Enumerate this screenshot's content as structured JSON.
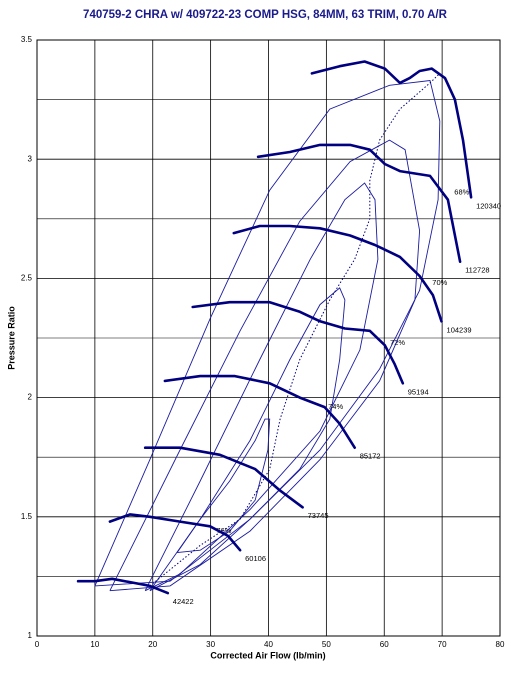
{
  "chart_data": {
    "type": "line",
    "title": "740759-2 CHRA w/ 409722-23 COMP HSG, 84MM, 63 TRIM, 0.70 A/R",
    "x_label": "Corrected Air Flow (lb/min)",
    "y_label": "Pressure Ratio",
    "xlim": [
      0,
      80
    ],
    "ylim": [
      1,
      3.5
    ],
    "xticks": [
      0,
      10,
      20,
      30,
      40,
      50,
      60,
      70,
      80
    ],
    "yticks": [
      1,
      1.5,
      2,
      2.5,
      3,
      3.5
    ],
    "y_minor_grid": [
      1.25,
      1.75,
      2.25,
      2.75,
      3.25
    ],
    "grid": true,
    "series": [
      {
        "name": "42422",
        "color": "#000080",
        "x": [
          7.1,
          10.0,
          13.0,
          19.5,
          22.6
        ],
        "y": [
          1.23,
          1.23,
          1.24,
          1.21,
          1.18
        ]
      },
      {
        "name": "60106",
        "color": "#000080",
        "x": [
          12.6,
          16.1,
          19.5,
          24.7,
          29.9,
          33.0,
          35.1
        ],
        "y": [
          1.48,
          1.51,
          1.5,
          1.48,
          1.46,
          1.42,
          1.36
        ]
      },
      {
        "name": "73745",
        "color": "#000080",
        "x": [
          18.7,
          24.7,
          31.6,
          37.7,
          42.0,
          45.9
        ],
        "y": [
          1.79,
          1.79,
          1.76,
          1.7,
          1.61,
          1.54
        ]
      },
      {
        "name": "85172",
        "color": "#000080",
        "x": [
          22.1,
          28.2,
          34.2,
          40.2,
          45.4,
          49.7,
          52.3,
          54.9
        ],
        "y": [
          2.07,
          2.09,
          2.09,
          2.06,
          2.0,
          1.96,
          1.89,
          1.79
        ]
      },
      {
        "name": "95194",
        "color": "#000080",
        "x": [
          26.9,
          33.3,
          40.2,
          45.4,
          48.9,
          53.2,
          57.5,
          60.1,
          61.8,
          63.2
        ],
        "y": [
          2.38,
          2.4,
          2.4,
          2.36,
          2.32,
          2.29,
          2.28,
          2.22,
          2.14,
          2.06
        ]
      },
      {
        "name": "104239",
        "color": "#000080",
        "x": [
          34.0,
          38.5,
          43.7,
          48.9,
          54.1,
          58.4,
          62.7,
          66.1,
          68.4,
          69.9
        ],
        "y": [
          2.69,
          2.72,
          2.72,
          2.71,
          2.68,
          2.64,
          2.59,
          2.51,
          2.43,
          2.32
        ]
      },
      {
        "name": "112728",
        "color": "#000080",
        "x": [
          38.2,
          43.7,
          48.9,
          54.1,
          57.5,
          60.1,
          62.7,
          67.9,
          71.0,
          73.1
        ],
        "y": [
          3.01,
          3.03,
          3.06,
          3.06,
          3.04,
          2.98,
          2.95,
          2.93,
          2.83,
          2.57
        ]
      },
      {
        "name": "120340",
        "color": "#000080",
        "x": [
          47.5,
          52.3,
          56.6,
          60.1,
          62.7,
          64.4,
          66.1,
          68.2,
          70.5,
          72.2,
          73.6,
          75.0
        ],
        "y": [
          3.36,
          3.39,
          3.41,
          3.38,
          3.32,
          3.34,
          3.37,
          3.38,
          3.34,
          3.25,
          3.08,
          2.84
        ]
      }
    ],
    "islands": [
      {
        "label": "76%",
        "label_x": 32.3,
        "label_y": 1.44,
        "x": [
          24.2,
          28.2,
          33.3,
          37.7,
          39.4,
          40.2,
          39.9,
          37.7,
          33.3,
          28.2,
          24.2
        ],
        "y": [
          1.35,
          1.49,
          1.65,
          1.82,
          1.91,
          1.91,
          1.78,
          1.57,
          1.44,
          1.36,
          1.35
        ]
      },
      {
        "label": "74%",
        "label_x": 51.6,
        "label_y": 1.96,
        "x": [
          19.5,
          28.2,
          36.8,
          43.7,
          48.9,
          52.3,
          53.2,
          52.3,
          50.6,
          45.4,
          36.8,
          28.2,
          19.5
        ],
        "y": [
          1.19,
          1.49,
          1.82,
          2.16,
          2.39,
          2.46,
          2.41,
          2.16,
          1.91,
          1.7,
          1.49,
          1.3,
          1.19
        ]
      },
      {
        "label": "72%",
        "label_x": 62.3,
        "label_y": 2.23,
        "x": [
          18.7,
          28.2,
          38.5,
          47.2,
          53.2,
          56.6,
          58.4,
          58.9,
          55.8,
          48.9,
          36.8,
          24.7,
          18.7
        ],
        "y": [
          1.19,
          1.65,
          2.16,
          2.58,
          2.83,
          2.9,
          2.83,
          2.58,
          2.2,
          1.86,
          1.53,
          1.26,
          1.19
        ]
      },
      {
        "label": "70%",
        "label_x": 69.6,
        "label_y": 2.48,
        "x": [
          12.6,
          24.7,
          35.1,
          45.4,
          54.1,
          60.9,
          63.6,
          66.1,
          65.3,
          59.2,
          48.9,
          36.8,
          23.0,
          12.6
        ],
        "y": [
          1.19,
          1.78,
          2.28,
          2.74,
          2.99,
          3.08,
          3.04,
          2.7,
          2.41,
          2.07,
          1.74,
          1.44,
          1.21,
          1.19
        ]
      },
      {
        "label": "68%",
        "label_x": 73.4,
        "label_y": 2.86,
        "x": [
          10.0,
          19.5,
          29.9,
          40.2,
          50.6,
          60.9,
          67.9,
          69.6,
          69.3,
          66.1,
          59.2,
          48.9,
          36.8,
          23.0,
          10.0
        ],
        "y": [
          1.21,
          1.74,
          2.33,
          2.87,
          3.21,
          3.31,
          3.33,
          3.16,
          2.83,
          2.45,
          2.12,
          1.78,
          1.49,
          1.23,
          1.21
        ]
      }
    ],
    "choke_line": {
      "color": "#000080",
      "x": [
        19.5,
        28.2,
        35.1,
        40.2,
        42.0,
        45.4,
        50.6,
        54.9,
        57.5,
        57.5,
        59.2,
        62.7,
        67.9,
        69.6
      ],
      "y": [
        1.21,
        1.38,
        1.49,
        1.7,
        1.91,
        2.16,
        2.41,
        2.58,
        2.75,
        2.91,
        3.08,
        3.21,
        3.32,
        3.36
      ]
    }
  }
}
